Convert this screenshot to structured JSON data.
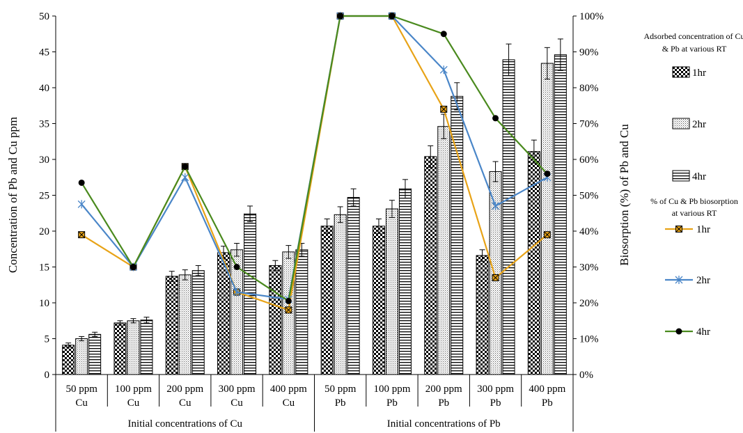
{
  "chart_data": {
    "type": "bar",
    "ylabel": "Concentration of  Pb and Cu  ppm",
    "y2label": "Biosorption (%) of Pb and Cu",
    "ylim": [
      0,
      50
    ],
    "y2lim": [
      0,
      100
    ],
    "yticks": [
      "0",
      "5",
      "10",
      "15",
      "20",
      "25",
      "30",
      "35",
      "40",
      "45",
      "50"
    ],
    "y2ticks": [
      "0%",
      "10%",
      "20%",
      "30%",
      "40%",
      "50%",
      "60%",
      "70%",
      "80%",
      "90%",
      "100%"
    ],
    "categories": [
      {
        "line1": "50 ppm",
        "line2": "Cu"
      },
      {
        "line1": "100 ppm",
        "line2": "Cu"
      },
      {
        "line1": "200 ppm",
        "line2": "Cu"
      },
      {
        "line1": "300 ppm",
        "line2": "Cu"
      },
      {
        "line1": "400 ppm",
        "line2": "Cu"
      },
      {
        "line1": "50 ppm",
        "line2": "Pb"
      },
      {
        "line1": "100 ppm",
        "line2": "Pb"
      },
      {
        "line1": "200 ppm",
        "line2": "Pb"
      },
      {
        "line1": "300 ppm",
        "line2": "Pb"
      },
      {
        "line1": "400 ppm",
        "line2": "Pb"
      }
    ],
    "groups": [
      {
        "label": "Initial concentrations of Cu",
        "span": [
          0,
          4
        ]
      },
      {
        "label": "Initial concentrations of Pb",
        "span": [
          5,
          9
        ]
      }
    ],
    "bar_legend_title": "Adsorbed concentration of Cu & Pb at various RT",
    "line_legend_title": "% of Cu & Pb biosorption at various RT",
    "bar_series": [
      {
        "name": "1hr",
        "pattern": "checker",
        "values": [
          4.1,
          7.2,
          13.7,
          17.0,
          15.2,
          20.7,
          20.7,
          30.4,
          16.6,
          31.1
        ],
        "errors": [
          0.3,
          0.3,
          0.7,
          0.9,
          0.7,
          1.0,
          1.0,
          1.5,
          0.8,
          1.6
        ]
      },
      {
        "name": "2hr",
        "pattern": "dots",
        "values": [
          5.0,
          7.5,
          13.9,
          17.4,
          17.1,
          22.3,
          23.1,
          34.6,
          28.3,
          43.4
        ],
        "errors": [
          0.3,
          0.3,
          0.7,
          0.9,
          0.9,
          1.1,
          1.2,
          1.7,
          1.4,
          2.2
        ]
      },
      {
        "name": "4hr",
        "pattern": "hlines",
        "values": [
          5.6,
          7.6,
          14.5,
          22.4,
          17.4,
          24.7,
          25.9,
          38.8,
          43.9,
          44.6
        ],
        "errors": [
          0.3,
          0.4,
          0.7,
          1.1,
          0.9,
          1.2,
          1.3,
          1.9,
          2.2,
          2.2
        ]
      }
    ],
    "line_series": [
      {
        "name": "1hr",
        "color": "#e8a317",
        "marker": "square-x",
        "values": [
          39,
          30,
          58,
          23,
          18,
          100,
          100,
          74,
          27,
          39
        ]
      },
      {
        "name": "2hr",
        "color": "#4a86c8",
        "marker": "asterisk",
        "values": [
          47.5,
          30,
          55,
          23,
          21,
          100,
          100,
          85,
          47,
          55
        ]
      },
      {
        "name": "4hr",
        "color": "#4a8a1e",
        "marker": "dot",
        "values": [
          53.5,
          30,
          58,
          30,
          20.5,
          100,
          100,
          95,
          71.5,
          56
        ]
      }
    ]
  }
}
